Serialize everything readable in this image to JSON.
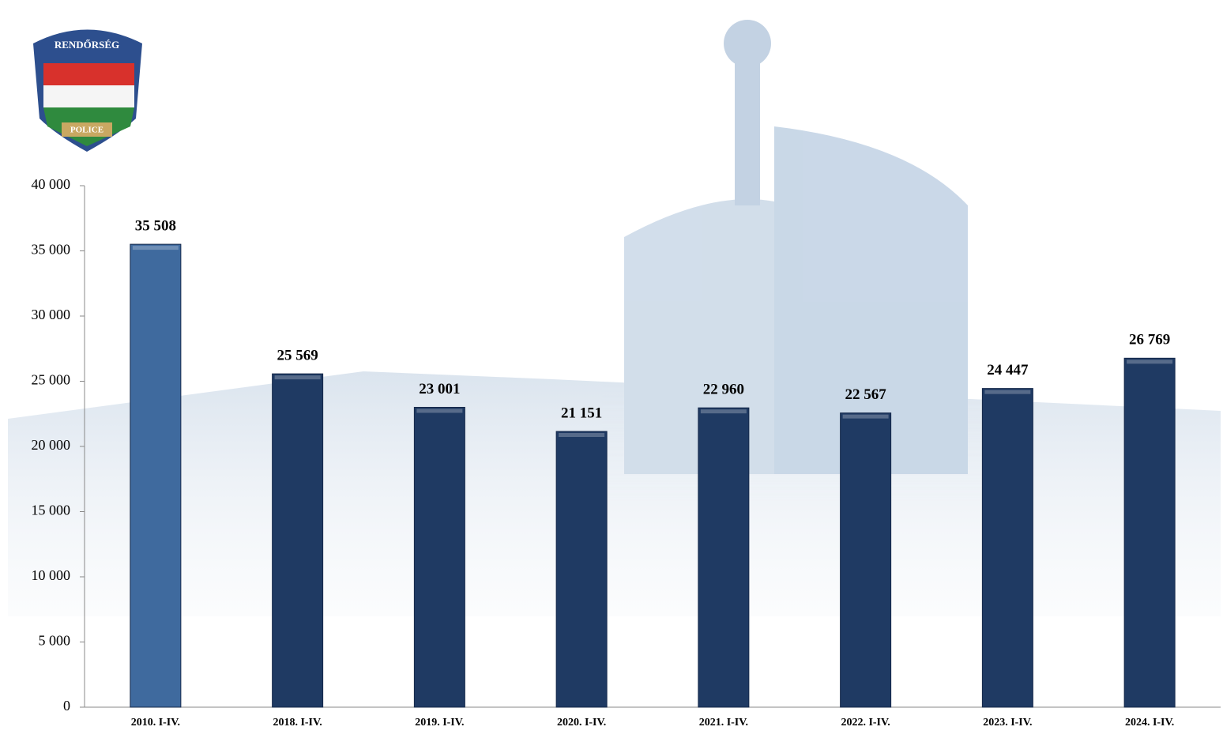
{
  "logo": {
    "top": "RENDŐRSÉG",
    "bottom": "POLICE"
  },
  "chart_data": {
    "type": "bar",
    "categories": [
      "2010. I-IV.",
      "2018. I-IV.",
      "2019. I-IV.",
      "2020. I-IV.",
      "2021. I-IV.",
      "2022. I-IV.",
      "2023. I-IV.",
      "2024. I-IV."
    ],
    "values": [
      35508,
      25569,
      23001,
      21151,
      22960,
      22567,
      24447,
      26769
    ],
    "value_labels": [
      "35 508",
      "25 569",
      "23 001",
      "21 151",
      "22 960",
      "22 567",
      "24 447",
      "26 769"
    ],
    "colors": [
      "#3f6a9e",
      "#1f3a63",
      "#1f3a63",
      "#1f3a63",
      "#1f3a63",
      "#1f3a63",
      "#1f3a63",
      "#1f3a63"
    ],
    "ylim": [
      0,
      40000
    ],
    "yticks": [
      0,
      {
        "value": 5000,
        "label": "5 000"
      },
      {
        "value": 10000,
        "label": "10 000"
      },
      {
        "value": 15000,
        "label": "15 000"
      },
      {
        "value": 20000,
        "label": "20 000"
      },
      {
        "value": 25000,
        "label": "25 000"
      },
      {
        "value": 30000,
        "label": "30 000"
      },
      {
        "value": 35000,
        "label": "35 000"
      },
      {
        "value": 40000,
        "label": "40 000"
      }
    ],
    "grid": false
  }
}
